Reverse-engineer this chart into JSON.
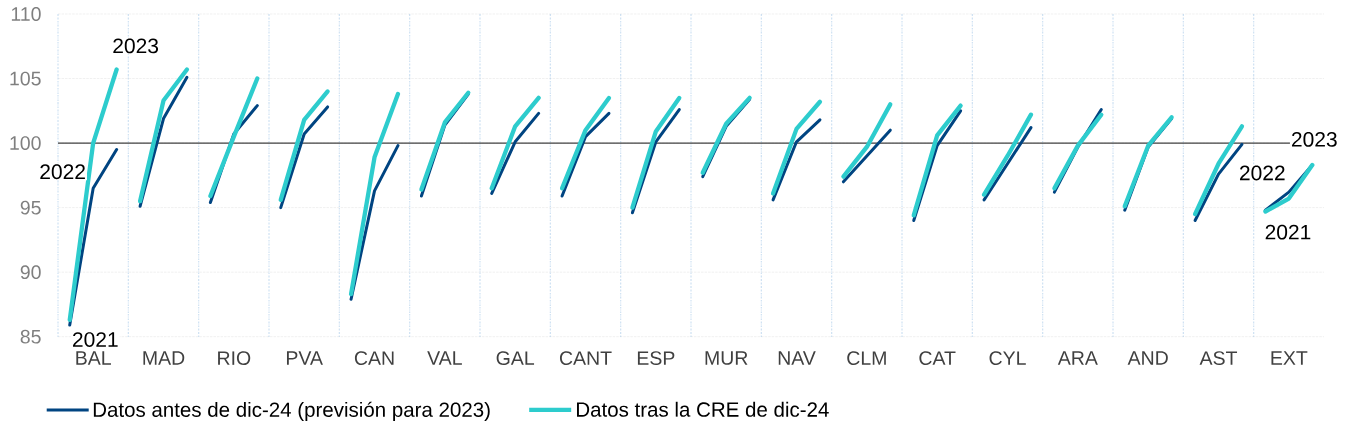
{
  "chart_data": {
    "type": "line",
    "categories": [
      null,
      "BAL",
      null,
      null,
      "MAD",
      null,
      null,
      "RIO",
      null,
      null,
      "PVA",
      null,
      null,
      "CAN",
      null,
      null,
      "VAL",
      null,
      null,
      "GAL",
      null,
      null,
      "CANT",
      null,
      null,
      "ESP",
      null,
      null,
      "MUR",
      null,
      null,
      "NAV",
      null,
      null,
      "CLM",
      null,
      null,
      "CAT",
      null,
      null,
      "CYL",
      null,
      null,
      "ARA",
      null,
      null,
      "AND",
      null,
      null,
      "AST",
      null,
      null,
      "EXT",
      null
    ],
    "series": [
      {
        "name": "Datos antes de dic-24 (previsión para 2023)",
        "color": "#004481",
        "values": [
          85.9,
          96.5,
          99.5,
          null,
          null,
          null,
          null,
          null,
          null,
          null,
          null,
          null,
          null,
          null,
          null,
          null,
          null,
          null,
          null,
          null,
          null,
          null,
          null,
          null,
          null,
          null,
          null,
          null,
          null,
          null,
          null,
          null,
          null,
          null,
          null,
          null,
          null,
          null,
          null,
          null,
          null,
          null,
          null,
          null,
          null,
          null,
          null,
          null,
          null,
          null,
          null,
          null,
          null,
          null
        ]
      },
      {
        "name": "Datos tras la CRE de dic-24",
        "color": "#2dcccd",
        "values": [
          86.3,
          100.0,
          105.7,
          null,
          null,
          null,
          null,
          null,
          null,
          null,
          null,
          null,
          null,
          null,
          null,
          null,
          null,
          null,
          null,
          null,
          null,
          null,
          null,
          null,
          null,
          null,
          null,
          null,
          null,
          null,
          null,
          null,
          null,
          null,
          null,
          null,
          null,
          null,
          null,
          null,
          null,
          null,
          null,
          null,
          null,
          null,
          null,
          null,
          null,
          null,
          null,
          null,
          null,
          null
        ]
      },
      {
        "color": "#004481",
        "values": [
          null,
          null,
          null,
          95.1,
          101.9,
          105.1,
          null,
          null,
          null,
          null,
          null,
          null,
          null,
          null,
          null,
          null,
          null,
          null,
          null,
          null,
          null,
          null,
          null,
          null,
          null,
          null,
          null,
          null,
          null,
          null,
          null,
          null,
          null,
          null,
          null,
          null,
          null,
          null,
          null,
          null,
          null,
          null,
          null,
          null,
          null,
          null,
          null,
          null,
          null,
          null,
          null,
          null,
          null,
          null
        ]
      },
      {
        "color": "#2dcccd",
        "values": [
          null,
          null,
          null,
          95.5,
          103.3,
          105.7,
          null,
          null,
          null,
          null,
          null,
          null,
          null,
          null,
          null,
          null,
          null,
          null,
          null,
          null,
          null,
          null,
          null,
          null,
          null,
          null,
          null,
          null,
          null,
          null,
          null,
          null,
          null,
          null,
          null,
          null,
          null,
          null,
          null,
          null,
          null,
          null,
          null,
          null,
          null,
          null,
          null,
          null,
          null,
          null,
          null,
          null,
          null,
          null
        ]
      },
      {
        "color": "#004481",
        "values": [
          null,
          null,
          null,
          null,
          null,
          null,
          95.4,
          100.7,
          102.9,
          null,
          null,
          null,
          null,
          null,
          null,
          null,
          null,
          null,
          null,
          null,
          null,
          null,
          null,
          null,
          null,
          null,
          null,
          null,
          null,
          null,
          null,
          null,
          null,
          null,
          null,
          null,
          null,
          null,
          null,
          null,
          null,
          null,
          null,
          null,
          null,
          null,
          null,
          null,
          null,
          null,
          null,
          null,
          null,
          null
        ]
      },
      {
        "color": "#2dcccd",
        "values": [
          null,
          null,
          null,
          null,
          null,
          null,
          95.9,
          100.5,
          105.0,
          null,
          null,
          null,
          null,
          null,
          null,
          null,
          null,
          null,
          null,
          null,
          null,
          null,
          null,
          null,
          null,
          null,
          null,
          null,
          null,
          null,
          null,
          null,
          null,
          null,
          null,
          null,
          null,
          null,
          null,
          null,
          null,
          null,
          null,
          null,
          null,
          null,
          null,
          null,
          null,
          null,
          null,
          null,
          null,
          null
        ]
      },
      {
        "color": "#004481",
        "values": [
          null,
          null,
          null,
          null,
          null,
          null,
          null,
          null,
          null,
          95.0,
          100.7,
          102.8,
          null,
          null,
          null,
          null,
          null,
          null,
          null,
          null,
          null,
          null,
          null,
          null,
          null,
          null,
          null,
          null,
          null,
          null,
          null,
          null,
          null,
          null,
          null,
          null,
          null,
          null,
          null,
          null,
          null,
          null,
          null,
          null,
          null,
          null,
          null,
          null,
          null,
          null,
          null,
          null,
          null,
          null
        ]
      },
      {
        "color": "#2dcccd",
        "values": [
          null,
          null,
          null,
          null,
          null,
          null,
          null,
          null,
          null,
          95.6,
          101.8,
          104.0,
          null,
          null,
          null,
          null,
          null,
          null,
          null,
          null,
          null,
          null,
          null,
          null,
          null,
          null,
          null,
          null,
          null,
          null,
          null,
          null,
          null,
          null,
          null,
          null,
          null,
          null,
          null,
          null,
          null,
          null,
          null,
          null,
          null,
          null,
          null,
          null,
          null,
          null,
          null,
          null,
          null,
          null
        ]
      },
      {
        "color": "#004481",
        "values": [
          null,
          null,
          null,
          null,
          null,
          null,
          null,
          null,
          null,
          null,
          null,
          null,
          87.9,
          96.3,
          99.8,
          null,
          null,
          null,
          null,
          null,
          null,
          null,
          null,
          null,
          null,
          null,
          null,
          null,
          null,
          null,
          null,
          null,
          null,
          null,
          null,
          null,
          null,
          null,
          null,
          null,
          null,
          null,
          null,
          null,
          null,
          null,
          null,
          null,
          null,
          null,
          null,
          null,
          null,
          null
        ]
      },
      {
        "color": "#2dcccd",
        "values": [
          null,
          null,
          null,
          null,
          null,
          null,
          null,
          null,
          null,
          null,
          null,
          null,
          88.3,
          98.9,
          103.8,
          null,
          null,
          null,
          null,
          null,
          null,
          null,
          null,
          null,
          null,
          null,
          null,
          null,
          null,
          null,
          null,
          null,
          null,
          null,
          null,
          null,
          null,
          null,
          null,
          null,
          null,
          null,
          null,
          null,
          null,
          null,
          null,
          null,
          null,
          null,
          null,
          null,
          null,
          null
        ]
      },
      {
        "color": "#004481",
        "values": [
          null,
          null,
          null,
          null,
          null,
          null,
          null,
          null,
          null,
          null,
          null,
          null,
          null,
          null,
          null,
          95.9,
          101.4,
          103.8,
          null,
          null,
          null,
          null,
          null,
          null,
          null,
          null,
          null,
          null,
          null,
          null,
          null,
          null,
          null,
          null,
          null,
          null,
          null,
          null,
          null,
          null,
          null,
          null,
          null,
          null,
          null,
          null,
          null,
          null,
          null,
          null,
          null,
          null,
          null,
          null
        ]
      },
      {
        "color": "#2dcccd",
        "values": [
          null,
          null,
          null,
          null,
          null,
          null,
          null,
          null,
          null,
          null,
          null,
          null,
          null,
          null,
          null,
          96.4,
          101.6,
          103.9,
          null,
          null,
          null,
          null,
          null,
          null,
          null,
          null,
          null,
          null,
          null,
          null,
          null,
          null,
          null,
          null,
          null,
          null,
          null,
          null,
          null,
          null,
          null,
          null,
          null,
          null,
          null,
          null,
          null,
          null,
          null,
          null,
          null,
          null,
          null,
          null
        ]
      },
      {
        "color": "#004481",
        "values": [
          null,
          null,
          null,
          null,
          null,
          null,
          null,
          null,
          null,
          null,
          null,
          null,
          null,
          null,
          null,
          null,
          null,
          null,
          96.1,
          100.1,
          102.3,
          null,
          null,
          null,
          null,
          null,
          null,
          null,
          null,
          null,
          null,
          null,
          null,
          null,
          null,
          null,
          null,
          null,
          null,
          null,
          null,
          null,
          null,
          null,
          null,
          null,
          null,
          null,
          null,
          null,
          null,
          null,
          null,
          null
        ]
      },
      {
        "color": "#2dcccd",
        "values": [
          null,
          null,
          null,
          null,
          null,
          null,
          null,
          null,
          null,
          null,
          null,
          null,
          null,
          null,
          null,
          null,
          null,
          null,
          96.5,
          101.3,
          103.5,
          null,
          null,
          null,
          null,
          null,
          null,
          null,
          null,
          null,
          null,
          null,
          null,
          null,
          null,
          null,
          null,
          null,
          null,
          null,
          null,
          null,
          null,
          null,
          null,
          null,
          null,
          null,
          null,
          null,
          null,
          null,
          null,
          null
        ]
      },
      {
        "color": "#004481",
        "values": [
          null,
          null,
          null,
          null,
          null,
          null,
          null,
          null,
          null,
          null,
          null,
          null,
          null,
          null,
          null,
          null,
          null,
          null,
          null,
          null,
          null,
          95.9,
          100.5,
          102.3,
          null,
          null,
          null,
          null,
          null,
          null,
          null,
          null,
          null,
          null,
          null,
          null,
          null,
          null,
          null,
          null,
          null,
          null,
          null,
          null,
          null,
          null,
          null,
          null,
          null,
          null,
          null,
          null,
          null,
          null
        ]
      },
      {
        "color": "#2dcccd",
        "values": [
          null,
          null,
          null,
          null,
          null,
          null,
          null,
          null,
          null,
          null,
          null,
          null,
          null,
          null,
          null,
          null,
          null,
          null,
          null,
          null,
          null,
          96.5,
          101.0,
          103.5,
          null,
          null,
          null,
          null,
          null,
          null,
          null,
          null,
          null,
          null,
          null,
          null,
          null,
          null,
          null,
          null,
          null,
          null,
          null,
          null,
          null,
          null,
          null,
          null,
          null,
          null,
          null,
          null,
          null,
          null
        ]
      },
      {
        "color": "#004481",
        "values": [
          null,
          null,
          null,
          null,
          null,
          null,
          null,
          null,
          null,
          null,
          null,
          null,
          null,
          null,
          null,
          null,
          null,
          null,
          null,
          null,
          null,
          null,
          null,
          null,
          94.6,
          100.1,
          102.6,
          null,
          null,
          null,
          null,
          null,
          null,
          null,
          null,
          null,
          null,
          null,
          null,
          null,
          null,
          null,
          null,
          null,
          null,
          null,
          null,
          null,
          null,
          null,
          null,
          null,
          null,
          null
        ]
      },
      {
        "color": "#2dcccd",
        "values": [
          null,
          null,
          null,
          null,
          null,
          null,
          null,
          null,
          null,
          null,
          null,
          null,
          null,
          null,
          null,
          null,
          null,
          null,
          null,
          null,
          null,
          null,
          null,
          null,
          95.0,
          100.9,
          103.5,
          null,
          null,
          null,
          null,
          null,
          null,
          null,
          null,
          null,
          null,
          null,
          null,
          null,
          null,
          null,
          null,
          null,
          null,
          null,
          null,
          null,
          null,
          null,
          null,
          null,
          null,
          null
        ]
      },
      {
        "color": "#004481",
        "values": [
          null,
          null,
          null,
          null,
          null,
          null,
          null,
          null,
          null,
          null,
          null,
          null,
          null,
          null,
          null,
          null,
          null,
          null,
          null,
          null,
          null,
          null,
          null,
          null,
          null,
          null,
          null,
          97.4,
          101.3,
          103.4,
          null,
          null,
          null,
          null,
          null,
          null,
          null,
          null,
          null,
          null,
          null,
          null,
          null,
          null,
          null,
          null,
          null,
          null,
          null,
          null,
          null,
          null,
          null,
          null
        ]
      },
      {
        "color": "#2dcccd",
        "values": [
          null,
          null,
          null,
          null,
          null,
          null,
          null,
          null,
          null,
          null,
          null,
          null,
          null,
          null,
          null,
          null,
          null,
          null,
          null,
          null,
          null,
          null,
          null,
          null,
          null,
          null,
          null,
          97.7,
          101.5,
          103.5,
          null,
          null,
          null,
          null,
          null,
          null,
          null,
          null,
          null,
          null,
          null,
          null,
          null,
          null,
          null,
          null,
          null,
          null,
          null,
          null,
          null,
          null,
          null,
          null
        ]
      },
      {
        "color": "#004481",
        "values": [
          null,
          null,
          null,
          null,
          null,
          null,
          null,
          null,
          null,
          null,
          null,
          null,
          null,
          null,
          null,
          null,
          null,
          null,
          null,
          null,
          null,
          null,
          null,
          null,
          null,
          null,
          null,
          null,
          null,
          null,
          95.6,
          100.1,
          101.8,
          null,
          null,
          null,
          null,
          null,
          null,
          null,
          null,
          null,
          null,
          null,
          null,
          null,
          null,
          null,
          null,
          null,
          null,
          null,
          null,
          null
        ]
      },
      {
        "color": "#2dcccd",
        "values": [
          null,
          null,
          null,
          null,
          null,
          null,
          null,
          null,
          null,
          null,
          null,
          null,
          null,
          null,
          null,
          null,
          null,
          null,
          null,
          null,
          null,
          null,
          null,
          null,
          null,
          null,
          null,
          null,
          null,
          null,
          96.1,
          101.1,
          103.2,
          null,
          null,
          null,
          null,
          null,
          null,
          null,
          null,
          null,
          null,
          null,
          null,
          null,
          null,
          null,
          null,
          null,
          null,
          null,
          null,
          null
        ]
      },
      {
        "color": "#004481",
        "values": [
          null,
          null,
          null,
          null,
          null,
          null,
          null,
          null,
          null,
          null,
          null,
          null,
          null,
          null,
          null,
          null,
          null,
          null,
          null,
          null,
          null,
          null,
          null,
          null,
          null,
          null,
          null,
          null,
          null,
          null,
          null,
          null,
          null,
          97.0,
          99.0,
          101.0,
          null,
          null,
          null,
          null,
          null,
          null,
          null,
          null,
          null,
          null,
          null,
          null,
          null,
          null,
          null,
          null,
          null,
          null
        ]
      },
      {
        "color": "#2dcccd",
        "values": [
          null,
          null,
          null,
          null,
          null,
          null,
          null,
          null,
          null,
          null,
          null,
          null,
          null,
          null,
          null,
          null,
          null,
          null,
          null,
          null,
          null,
          null,
          null,
          null,
          null,
          null,
          null,
          null,
          null,
          null,
          null,
          null,
          null,
          97.4,
          99.7,
          103.0,
          null,
          null,
          null,
          null,
          null,
          null,
          null,
          null,
          null,
          null,
          null,
          null,
          null,
          null,
          null,
          null,
          null,
          null
        ]
      },
      {
        "color": "#004481",
        "values": [
          null,
          null,
          null,
          null,
          null,
          null,
          null,
          null,
          null,
          null,
          null,
          null,
          null,
          null,
          null,
          null,
          null,
          null,
          null,
          null,
          null,
          null,
          null,
          null,
          null,
          null,
          null,
          null,
          null,
          null,
          null,
          null,
          null,
          null,
          null,
          null,
          94.0,
          99.8,
          102.5,
          null,
          null,
          null,
          null,
          null,
          null,
          null,
          null,
          null,
          null,
          null,
          null,
          null,
          null,
          null
        ]
      },
      {
        "color": "#2dcccd",
        "values": [
          null,
          null,
          null,
          null,
          null,
          null,
          null,
          null,
          null,
          null,
          null,
          null,
          null,
          null,
          null,
          null,
          null,
          null,
          null,
          null,
          null,
          null,
          null,
          null,
          null,
          null,
          null,
          null,
          null,
          null,
          null,
          null,
          null,
          null,
          null,
          null,
          94.4,
          100.6,
          102.9,
          null,
          null,
          null,
          null,
          null,
          null,
          null,
          null,
          null,
          null,
          null,
          null,
          null,
          null,
          null
        ]
      },
      {
        "color": "#004481",
        "values": [
          null,
          null,
          null,
          null,
          null,
          null,
          null,
          null,
          null,
          null,
          null,
          null,
          null,
          null,
          null,
          null,
          null,
          null,
          null,
          null,
          null,
          null,
          null,
          null,
          null,
          null,
          null,
          null,
          null,
          null,
          null,
          null,
          null,
          null,
          null,
          null,
          null,
          null,
          null,
          95.6,
          98.4,
          101.2,
          null,
          null,
          null,
          null,
          null,
          null,
          null,
          null,
          null,
          null,
          null,
          null
        ]
      },
      {
        "color": "#2dcccd",
        "values": [
          null,
          null,
          null,
          null,
          null,
          null,
          null,
          null,
          null,
          null,
          null,
          null,
          null,
          null,
          null,
          null,
          null,
          null,
          null,
          null,
          null,
          null,
          null,
          null,
          null,
          null,
          null,
          null,
          null,
          null,
          null,
          null,
          null,
          null,
          null,
          null,
          null,
          null,
          null,
          96.0,
          99.0,
          102.2,
          null,
          null,
          null,
          null,
          null,
          null,
          null,
          null,
          null,
          null,
          null,
          null
        ]
      },
      {
        "color": "#004481",
        "values": [
          null,
          null,
          null,
          null,
          null,
          null,
          null,
          null,
          null,
          null,
          null,
          null,
          null,
          null,
          null,
          null,
          null,
          null,
          null,
          null,
          null,
          null,
          null,
          null,
          null,
          null,
          null,
          null,
          null,
          null,
          null,
          null,
          null,
          null,
          null,
          null,
          null,
          null,
          null,
          null,
          null,
          null,
          96.2,
          99.7,
          102.6,
          null,
          null,
          null,
          null,
          null,
          null,
          null,
          null,
          null
        ]
      },
      {
        "color": "#2dcccd",
        "values": [
          null,
          null,
          null,
          null,
          null,
          null,
          null,
          null,
          null,
          null,
          null,
          null,
          null,
          null,
          null,
          null,
          null,
          null,
          null,
          null,
          null,
          null,
          null,
          null,
          null,
          null,
          null,
          null,
          null,
          null,
          null,
          null,
          null,
          null,
          null,
          null,
          null,
          null,
          null,
          null,
          null,
          null,
          96.5,
          99.8,
          102.2,
          null,
          null,
          null,
          null,
          null,
          null,
          null,
          null,
          null
        ]
      },
      {
        "color": "#004481",
        "values": [
          null,
          null,
          null,
          null,
          null,
          null,
          null,
          null,
          null,
          null,
          null,
          null,
          null,
          null,
          null,
          null,
          null,
          null,
          null,
          null,
          null,
          null,
          null,
          null,
          null,
          null,
          null,
          null,
          null,
          null,
          null,
          null,
          null,
          null,
          null,
          null,
          null,
          null,
          null,
          null,
          null,
          null,
          null,
          null,
          null,
          94.8,
          99.7,
          101.9,
          null,
          null,
          null,
          null,
          null,
          null
        ]
      },
      {
        "color": "#2dcccd",
        "values": [
          null,
          null,
          null,
          null,
          null,
          null,
          null,
          null,
          null,
          null,
          null,
          null,
          null,
          null,
          null,
          null,
          null,
          null,
          null,
          null,
          null,
          null,
          null,
          null,
          null,
          null,
          null,
          null,
          null,
          null,
          null,
          null,
          null,
          null,
          null,
          null,
          null,
          null,
          null,
          null,
          null,
          null,
          null,
          null,
          null,
          95.1,
          99.8,
          102.0,
          null,
          null,
          null,
          null,
          null,
          null
        ]
      },
      {
        "color": "#004481",
        "values": [
          null,
          null,
          null,
          null,
          null,
          null,
          null,
          null,
          null,
          null,
          null,
          null,
          null,
          null,
          null,
          null,
          null,
          null,
          null,
          null,
          null,
          null,
          null,
          null,
          null,
          null,
          null,
          null,
          null,
          null,
          null,
          null,
          null,
          null,
          null,
          null,
          null,
          null,
          null,
          null,
          null,
          null,
          null,
          null,
          null,
          null,
          null,
          null,
          94.0,
          97.6,
          99.9,
          null,
          null,
          null
        ]
      },
      {
        "color": "#2dcccd",
        "values": [
          null,
          null,
          null,
          null,
          null,
          null,
          null,
          null,
          null,
          null,
          null,
          null,
          null,
          null,
          null,
          null,
          null,
          null,
          null,
          null,
          null,
          null,
          null,
          null,
          null,
          null,
          null,
          null,
          null,
          null,
          null,
          null,
          null,
          null,
          null,
          null,
          null,
          null,
          null,
          null,
          null,
          null,
          null,
          null,
          null,
          null,
          null,
          null,
          94.5,
          98.4,
          101.3,
          null,
          null,
          null
        ]
      },
      {
        "color": "#004481",
        "values": [
          null,
          null,
          null,
          null,
          null,
          null,
          null,
          null,
          null,
          null,
          null,
          null,
          null,
          null,
          null,
          null,
          null,
          null,
          null,
          null,
          null,
          null,
          null,
          null,
          null,
          null,
          null,
          null,
          null,
          null,
          null,
          null,
          null,
          null,
          null,
          null,
          null,
          null,
          null,
          null,
          null,
          null,
          null,
          null,
          null,
          null,
          null,
          null,
          null,
          null,
          null,
          94.8,
          96.2,
          98.3
        ]
      },
      {
        "color": "#2dcccd",
        "values": [
          null,
          null,
          null,
          null,
          null,
          null,
          null,
          null,
          null,
          null,
          null,
          null,
          null,
          null,
          null,
          null,
          null,
          null,
          null,
          null,
          null,
          null,
          null,
          null,
          null,
          null,
          null,
          null,
          null,
          null,
          null,
          null,
          null,
          null,
          null,
          null,
          null,
          null,
          null,
          null,
          null,
          null,
          null,
          null,
          null,
          null,
          null,
          null,
          null,
          null,
          null,
          94.7,
          95.7,
          98.3
        ]
      }
    ],
    "ylim": [
      85,
      110
    ],
    "yticks": [
      85,
      90,
      95,
      100,
      105,
      110
    ],
    "grid": true,
    "legend": "bottom",
    "ref_lines": [
      {
        "axis": "y",
        "value": 100,
        "color": "#404040"
      }
    ],
    "annotations": [
      "2023",
      "2022",
      "2021",
      "2023",
      "2022",
      "2021"
    ]
  }
}
